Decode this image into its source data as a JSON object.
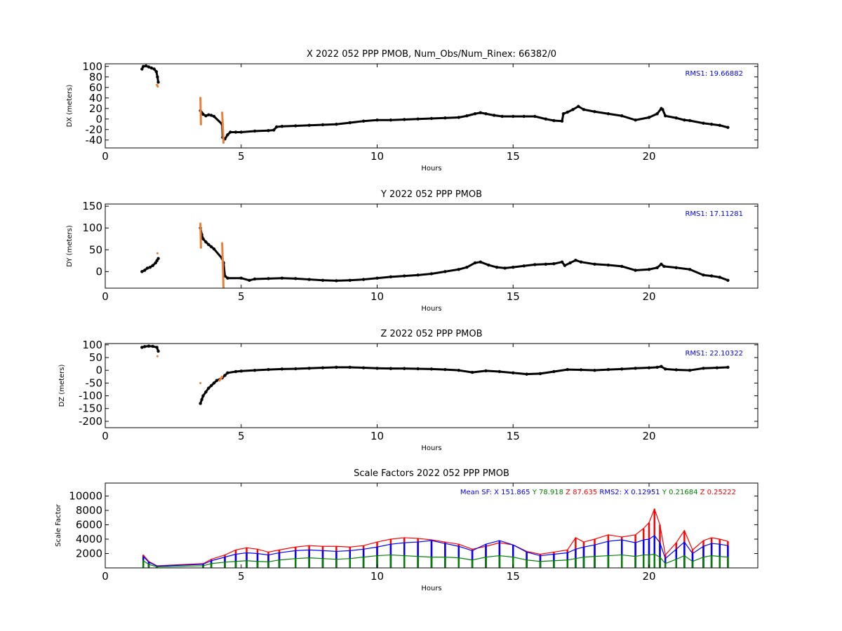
{
  "chart_data": [
    {
      "type": "scatter",
      "title": "X 2022 052 PPP  PMOB, Num_Obs/Num_Rinex: 66382/0",
      "xlabel": "Hours",
      "ylabel": "DX (meters)",
      "xlim": [
        0,
        24
      ],
      "ylim": [
        -55,
        105
      ],
      "xticks": [
        0,
        5,
        10,
        15,
        20
      ],
      "yticks": [
        -40,
        -20,
        0,
        20,
        40,
        60,
        80,
        100
      ],
      "grid": false,
      "annotation": "RMS1: 19.66882",
      "annotation_color": "#0000ff",
      "series": [
        {
          "color": "#000000",
          "x": [
            1.35,
            1.4,
            1.5,
            1.6,
            1.7,
            1.8,
            1.88,
            1.92,
            1.95,
            3.5,
            3.55,
            3.6,
            3.7,
            3.8,
            3.9,
            4.0,
            4.3,
            4.32,
            4.4,
            4.5,
            4.6,
            4.8,
            5.0,
            5.5,
            6.0,
            6.2,
            6.3,
            6.5,
            7.0,
            7.5,
            8.0,
            8.5,
            9.0,
            9.5,
            10.0,
            10.5,
            11.0,
            11.5,
            12.0,
            12.5,
            13.0,
            13.3,
            13.6,
            13.8,
            14.0,
            14.3,
            14.6,
            15.0,
            15.4,
            15.8,
            16.2,
            16.5,
            16.8,
            16.85,
            17.0,
            17.2,
            17.4,
            17.6,
            18.0,
            18.5,
            19.0,
            19.5,
            20.0,
            20.3,
            20.45,
            20.5,
            20.6,
            21.0,
            21.3,
            21.5,
            22.0,
            22.3,
            22.6,
            22.9
          ],
          "y": [
            95,
            100,
            101,
            99,
            97,
            95,
            90,
            80,
            70,
            16,
            12,
            9,
            6,
            8,
            7,
            5,
            -10,
            -35,
            -38,
            -30,
            -25,
            -25,
            -25,
            -23,
            -22,
            -21,
            -15,
            -14,
            -13,
            -12,
            -11,
            -10,
            -7,
            -4,
            -2,
            -2,
            -1,
            0,
            1,
            2,
            3,
            6,
            10,
            12,
            10,
            7,
            5,
            5,
            5,
            5,
            0,
            -3,
            -4,
            10,
            13,
            18,
            24,
            18,
            14,
            10,
            6,
            -2,
            3,
            10,
            20,
            18,
            6,
            2,
            -2,
            -3,
            -8,
            -10,
            -12,
            -16
          ]
        },
        {
          "color": "#e8803a",
          "x": [
            1.9,
            1.93,
            3.5,
            3.52,
            4.3,
            4.35
          ],
          "y": [
            65,
            62,
            40,
            -10,
            12,
            -45
          ]
        }
      ]
    },
    {
      "type": "scatter",
      "title": "Y 2022 052 PPP  PMOB",
      "xlabel": "Hours",
      "ylabel": "DY (meters)",
      "xlim": [
        0,
        24
      ],
      "ylim": [
        -38,
        155
      ],
      "xticks": [
        0,
        5,
        10,
        15,
        20
      ],
      "yticks": [
        0,
        50,
        100,
        150
      ],
      "grid": false,
      "annotation": "RMS1: 17.11281",
      "annotation_color": "#0000ff",
      "series": [
        {
          "color": "#000000",
          "x": [
            1.35,
            1.45,
            1.55,
            1.65,
            1.75,
            1.85,
            1.9,
            1.95,
            3.5,
            3.55,
            3.6,
            3.7,
            3.8,
            3.9,
            4.0,
            4.3,
            4.35,
            4.4,
            4.5,
            5.0,
            5.3,
            5.5,
            6.0,
            6.5,
            7.0,
            7.5,
            8.0,
            8.5,
            9.0,
            9.5,
            10.0,
            10.5,
            11.0,
            11.5,
            12.0,
            12.5,
            13.0,
            13.3,
            13.6,
            13.8,
            14.1,
            14.4,
            14.7,
            15.0,
            15.4,
            15.8,
            16.2,
            16.5,
            16.8,
            16.9,
            17.1,
            17.3,
            17.5,
            18.0,
            18.5,
            19.0,
            19.5,
            20.0,
            20.3,
            20.45,
            20.55,
            21.0,
            21.5,
            22.0,
            22.3,
            22.6,
            22.9
          ],
          "y": [
            0,
            3,
            8,
            10,
            14,
            20,
            25,
            30,
            100,
            85,
            75,
            68,
            62,
            57,
            52,
            30,
            20,
            -10,
            -15,
            -15,
            -20,
            -17,
            -16,
            -15,
            -16,
            -18,
            -20,
            -21,
            -20,
            -18,
            -15,
            -12,
            -10,
            -8,
            -5,
            0,
            5,
            10,
            20,
            22,
            15,
            10,
            8,
            10,
            13,
            16,
            17,
            18,
            22,
            14,
            20,
            26,
            22,
            17,
            15,
            12,
            3,
            5,
            9,
            17,
            12,
            9,
            5,
            -8,
            -10,
            -13,
            -20
          ]
        },
        {
          "color": "#e8803a",
          "x": [
            1.92,
            3.5,
            3.52,
            4.3,
            4.35
          ],
          "y": [
            42,
            110,
            55,
            65,
            -38
          ]
        }
      ]
    },
    {
      "type": "scatter",
      "title": "Z 2022 052 PPP  PMOB",
      "xlabel": "Hours",
      "ylabel": "DZ (meters)",
      "xlim": [
        0,
        24
      ],
      "ylim": [
        -225,
        105
      ],
      "xticks": [
        0,
        5,
        10,
        15,
        20
      ],
      "yticks": [
        -200,
        -150,
        -100,
        -50,
        0,
        50,
        100
      ],
      "grid": false,
      "annotation": "RMS1: 22.10322",
      "annotation_color": "#0000ff",
      "series": [
        {
          "color": "#000000",
          "x": [
            1.35,
            1.45,
            1.6,
            1.75,
            1.9,
            1.95,
            3.5,
            3.55,
            3.6,
            3.7,
            3.8,
            3.9,
            4.0,
            4.1,
            4.3,
            4.4,
            4.5,
            4.8,
            5.0,
            5.5,
            6.0,
            6.5,
            7.0,
            7.5,
            8.0,
            8.5,
            9.0,
            9.5,
            10.0,
            10.5,
            11.0,
            11.5,
            12.0,
            12.5,
            13.0,
            13.5,
            14.0,
            14.5,
            15.0,
            15.5,
            16.0,
            16.5,
            17.0,
            17.5,
            18.0,
            18.5,
            19.0,
            19.5,
            20.0,
            20.3,
            20.45,
            20.6,
            21.0,
            21.5,
            22.0,
            22.5,
            22.9
          ],
          "y": [
            90,
            93,
            95,
            94,
            90,
            75,
            -130,
            -115,
            -100,
            -85,
            -70,
            -60,
            -50,
            -40,
            -30,
            -20,
            -10,
            -5,
            -3,
            0,
            3,
            5,
            6,
            8,
            10,
            12,
            12,
            10,
            8,
            7,
            7,
            6,
            5,
            3,
            0,
            -8,
            -2,
            -5,
            -10,
            -15,
            -13,
            -5,
            3,
            2,
            0,
            3,
            5,
            8,
            10,
            12,
            15,
            5,
            2,
            0,
            8,
            10,
            12
          ]
        },
        {
          "color": "#e8803a",
          "x": [
            1.92,
            3.5,
            4.2,
            4.3
          ],
          "y": [
            55,
            -50,
            -40,
            -25
          ]
        }
      ]
    },
    {
      "type": "scatter",
      "title": "Scale Factors 2022 052 PPP  PMOB",
      "xlabel": "Hours",
      "ylabel": "Scale Factor",
      "xlim": [
        0,
        24
      ],
      "ylim": [
        0,
        11800
      ],
      "xticks": [
        0,
        5,
        10,
        15,
        20
      ],
      "yticks": [
        2000,
        4000,
        6000,
        8000,
        10000
      ],
      "grid": false,
      "annotations": [
        {
          "text": "Mean SF: X 151.865",
          "color": "#0000ff"
        },
        {
          "text": "Y  78.918",
          "color": "#008000"
        },
        {
          "text": "Z  87.635",
          "color": "#ff0000"
        },
        {
          "text": "RMS2: X  0.12951",
          "color": "#0000ff"
        },
        {
          "text": "Y  0.21684",
          "color": "#008000"
        },
        {
          "text": "Z  0.25222",
          "color": "#ff0000"
        }
      ],
      "series": [
        {
          "color": "#ff0000",
          "x": [
            1.4,
            1.6,
            1.9,
            3.6,
            3.9,
            4.4,
            4.8,
            5.2,
            5.6,
            6.0,
            6.4,
            7.0,
            7.5,
            8.0,
            8.5,
            9.0,
            9.5,
            10.0,
            10.5,
            11.0,
            11.5,
            12.0,
            12.5,
            13.0,
            13.5,
            14.0,
            14.5,
            15.0,
            15.5,
            16.0,
            16.5,
            17.0,
            17.3,
            17.6,
            18.0,
            18.5,
            19.0,
            19.5,
            19.8,
            20.0,
            20.2,
            20.4,
            20.6,
            21.0,
            21.3,
            21.6,
            22.0,
            22.3,
            22.6,
            22.9
          ],
          "y": [
            1800,
            900,
            300,
            600,
            1200,
            1800,
            2500,
            2800,
            2600,
            2200,
            2500,
            2900,
            3100,
            3000,
            3000,
            2900,
            3100,
            3600,
            4000,
            4200,
            4100,
            3900,
            3600,
            3300,
            2600,
            3000,
            3500,
            3200,
            2300,
            1900,
            2200,
            2500,
            4200,
            3600,
            4000,
            4600,
            4300,
            4600,
            5500,
            6300,
            8200,
            6000,
            1800,
            3500,
            5200,
            2500,
            3800,
            4200,
            4000,
            3700
          ]
        },
        {
          "color": "#0000ff",
          "x": [
            1.4,
            1.6,
            1.9,
            3.6,
            3.9,
            4.4,
            4.8,
            5.2,
            5.6,
            6.0,
            6.4,
            7.0,
            7.5,
            8.0,
            8.5,
            9.0,
            9.5,
            10.0,
            10.5,
            11.0,
            11.5,
            12.0,
            12.5,
            13.0,
            13.5,
            14.0,
            14.5,
            15.0,
            15.5,
            16.0,
            16.5,
            17.0,
            17.3,
            17.6,
            18.0,
            18.5,
            19.0,
            19.5,
            19.8,
            20.0,
            20.2,
            20.4,
            20.6,
            21.0,
            21.3,
            21.6,
            22.0,
            22.3,
            22.6,
            22.9
          ],
          "y": [
            1600,
            800,
            250,
            500,
            1000,
            1500,
            1900,
            2100,
            2000,
            1800,
            2100,
            2400,
            2500,
            2400,
            2300,
            2400,
            2600,
            2900,
            3300,
            3500,
            3600,
            3800,
            3400,
            3000,
            2400,
            3300,
            3800,
            3200,
            2200,
            1700,
            1900,
            2100,
            2600,
            2900,
            3200,
            3700,
            3900,
            3500,
            3900,
            4000,
            4500,
            3500,
            1300,
            2600,
            3600,
            2000,
            3000,
            3400,
            3300,
            3100
          ]
        },
        {
          "color": "#008000",
          "x": [
            1.4,
            1.6,
            1.9,
            3.6,
            3.9,
            4.4,
            4.8,
            5.2,
            5.6,
            6.0,
            6.4,
            7.0,
            7.5,
            8.0,
            8.5,
            9.0,
            9.5,
            10.0,
            10.5,
            11.0,
            11.5,
            12.0,
            12.5,
            13.0,
            13.5,
            14.0,
            14.5,
            15.0,
            15.5,
            16.0,
            16.5,
            17.0,
            17.3,
            17.6,
            18.0,
            18.5,
            19.0,
            19.5,
            19.8,
            20.0,
            20.2,
            20.4,
            20.6,
            21.0,
            21.3,
            21.6,
            22.0,
            22.3,
            22.6,
            22.9
          ],
          "y": [
            1000,
            500,
            150,
            300,
            600,
            800,
            900,
            1000,
            900,
            850,
            1100,
            1300,
            1400,
            1300,
            1200,
            1300,
            1500,
            1700,
            1800,
            1700,
            1600,
            1500,
            1500,
            1400,
            1100,
            1500,
            1700,
            1500,
            1100,
            900,
            1000,
            1100,
            1300,
            1500,
            1600,
            1700,
            1800,
            1600,
            1800,
            1800,
            1900,
            1500,
            600,
            1200,
            1700,
            900,
            1500,
            1700,
            1600,
            1500
          ]
        }
      ]
    }
  ]
}
